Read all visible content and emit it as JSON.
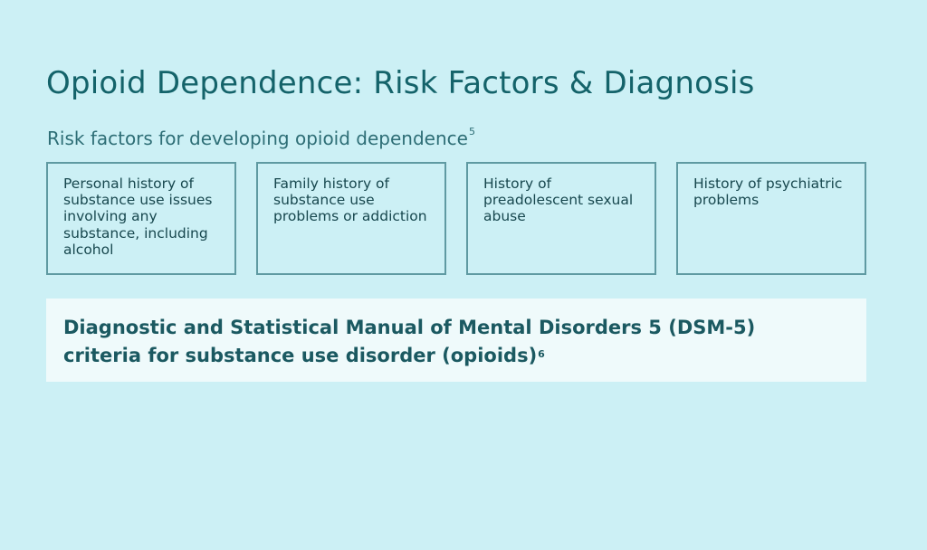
{
  "title": "Opioid Dependence: Risk Factors & Diagnosis",
  "risk_section": {
    "heading": "Risk factors for developing opioid dependence",
    "heading_ref": "5",
    "factors": [
      "Personal history of substance use issues involving any substance, including alcohol",
      "Family history of substance use problems or addiction",
      "History of preadolescent sexual abuse",
      "History of psychiatric problems"
    ]
  },
  "diagnosis": {
    "line1": "Diagnostic and Statistical Manual of Mental Disorders 5 (DSM-5)",
    "line2": "criteria for substance use disorder (opioids)",
    "ref": "6"
  },
  "colors": {
    "background": "#ccf0f5",
    "title": "#14636a",
    "card_border": "#5f9aa2",
    "panel": "#effafb"
  }
}
